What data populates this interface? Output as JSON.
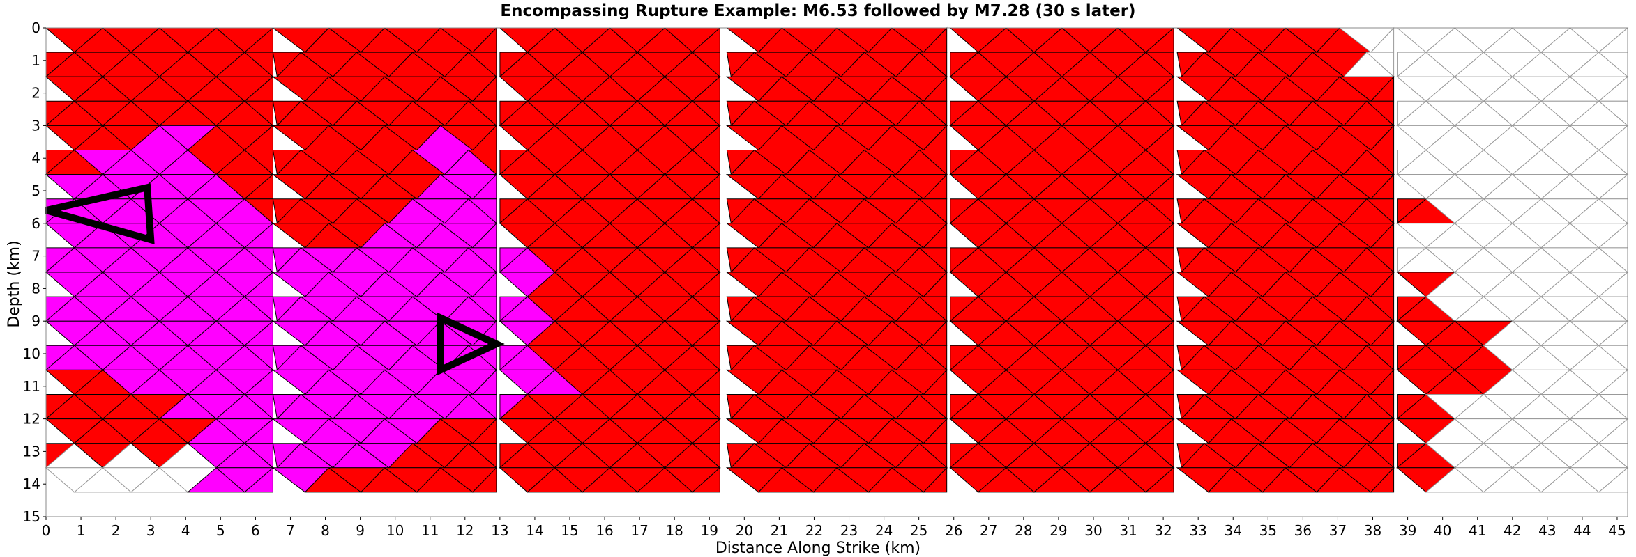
{
  "chart_data": {
    "type": "heatmap",
    "title": "Encompassing Rupture Example: M6.53 followed by M7.28 (30 s later)",
    "xlabel": "Distance Along Strike (km)",
    "ylabel": "Depth (km)",
    "xlim": [
      0,
      45.3
    ],
    "ylim": [
      15,
      0
    ],
    "y_inverted": true,
    "x_ticks": [
      "0",
      "1",
      "2",
      "3",
      "4",
      "5",
      "6",
      "7",
      "8",
      "9",
      "10",
      "11",
      "12",
      "13",
      "14",
      "15",
      "16",
      "17",
      "18",
      "19",
      "20",
      "21",
      "22",
      "23",
      "24",
      "25",
      "26",
      "27",
      "28",
      "29",
      "30",
      "31",
      "32",
      "33",
      "34",
      "35",
      "36",
      "37",
      "38",
      "39",
      "40",
      "41",
      "42",
      "43",
      "44",
      "45"
    ],
    "y_ticks": [
      "0",
      "1",
      "2",
      "3",
      "4",
      "5",
      "6",
      "7",
      "8",
      "9",
      "10",
      "11",
      "12",
      "13",
      "14",
      "15"
    ],
    "grid": false,
    "colors": {
      "m728_rupture": "#ff0000",
      "m653_rupture": "#ff00ff",
      "unruptured": "#ffffff",
      "hypocenter_outline": "#000000",
      "element_edge": "#000000",
      "unruptured_edge": "#999999"
    },
    "fault_sections": [
      {
        "x_start": 0.0,
        "x_end": 6.5
      },
      {
        "x_start": 6.5,
        "x_end": 12.9
      },
      {
        "x_start": 13.0,
        "x_end": 19.3
      },
      {
        "x_start": 19.5,
        "x_end": 25.8
      },
      {
        "x_start": 25.9,
        "x_end": 32.3
      },
      {
        "x_start": 32.4,
        "x_end": 38.6
      },
      {
        "x_start": 38.7,
        "x_end": 45.3
      }
    ],
    "m653_rupture_region": [
      [
        0,
        4.8
      ],
      [
        3.0,
        3.3
      ],
      [
        4.7,
        2.5
      ],
      [
        4.8,
        4.9
      ],
      [
        8.2,
        6.8
      ],
      [
        11.2,
        4.9
      ],
      [
        11.3,
        3.4
      ],
      [
        12.8,
        4.1
      ],
      [
        12.9,
        5.4
      ],
      [
        14.5,
        8.3
      ],
      [
        14.6,
        11.2
      ],
      [
        12.8,
        12.0
      ],
      [
        8.2,
        13.6
      ],
      [
        6.4,
        14.4
      ],
      [
        4.7,
        14.4
      ],
      [
        4.7,
        12.8
      ],
      [
        3.0,
        11.2
      ],
      [
        0,
        10.5
      ]
    ],
    "unruptured_regions": [
      {
        "section": "far-east",
        "note": "white elements east of the red rupture edge"
      },
      {
        "section": "south-west corner",
        "x": [
          0,
          4.7
        ],
        "y": [
          13.2,
          14.4
        ]
      }
    ],
    "hypocenters": [
      {
        "event": "M6.53",
        "vertices": [
          [
            0,
            5.6
          ],
          [
            2.9,
            4.9
          ],
          [
            3.0,
            6.5
          ]
        ]
      },
      {
        "event": "M7.28",
        "vertices": [
          [
            11.3,
            8.9
          ],
          [
            12.9,
            9.7
          ],
          [
            11.3,
            10.5
          ]
        ]
      }
    ]
  }
}
